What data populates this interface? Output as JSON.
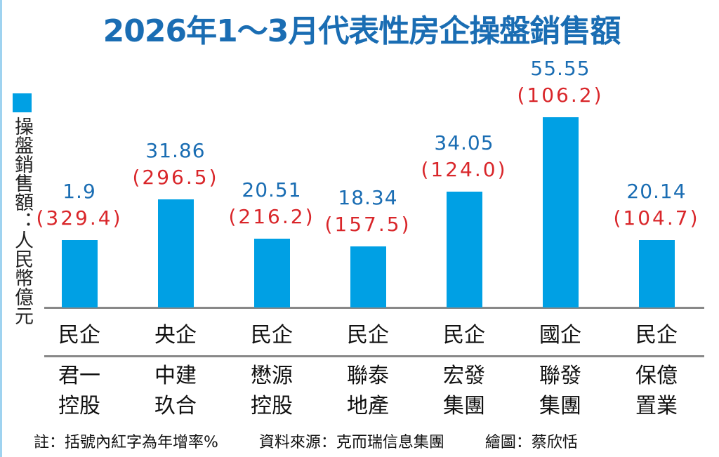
{
  "chart_data": {
    "type": "bar",
    "title": "2026年1～3月代表性房企操盤銷售額",
    "ylabel": "操盤銷售額：人民幣億元",
    "legend": "操盤銷售額",
    "legend_position": "top-left",
    "categories": [
      "君一控股",
      "中建玖合",
      "懋源控股",
      "聯泰地產",
      "宏發集團",
      "聯發集團",
      "保億置業"
    ],
    "name_lines": [
      [
        "君一",
        "控股"
      ],
      [
        "中建",
        "玖合"
      ],
      [
        "懋源",
        "控股"
      ],
      [
        "聯泰",
        "地產"
      ],
      [
        "宏發",
        "集團"
      ],
      [
        "聯發",
        "集團"
      ],
      [
        "保億",
        "置業"
      ]
    ],
    "ownership": [
      "民企",
      "央企",
      "民企",
      "民企",
      "民企",
      "國企",
      "民企"
    ],
    "values": [
      1.9,
      31.86,
      20.51,
      18.34,
      34.05,
      55.55,
      20.14
    ],
    "value_labels": [
      "1.9",
      "31.86",
      "20.51",
      "18.34",
      "34.05",
      "55.55",
      "20.14"
    ],
    "growth_pct": [
      329.4,
      296.5,
      216.2,
      157.5,
      124.0,
      106.2,
      104.7
    ],
    "growth_labels": [
      "(329.4)",
      "(296.5)",
      "(216.2)",
      "(157.5)",
      "(124.0)",
      "(106.2)",
      "(104.7)"
    ],
    "colors": {
      "bar": "#00a0e4",
      "value": "#1a6db3",
      "growth": "#d9262a"
    }
  },
  "footer": {
    "note": "註：括號內紅字為年增率%",
    "source": "資料來源：克而瑞信息集團",
    "credit": "繪圖：蔡欣恬"
  }
}
